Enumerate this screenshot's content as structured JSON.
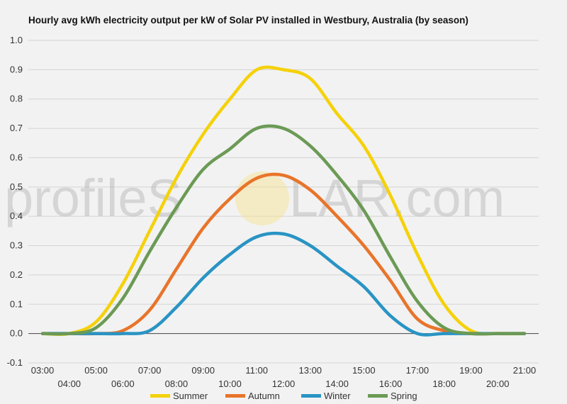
{
  "chart_data": {
    "type": "line",
    "title": "Hourly avg kWh electricity output per kW of Solar PV installed in Westbury, Australia (by season)",
    "xlabel": "",
    "ylabel": "",
    "ylim": [
      -0.1,
      1.0
    ],
    "yticks": [
      "-0.1",
      "0.0",
      "0.1",
      "0.2",
      "0.3",
      "0.4",
      "0.5",
      "0.6",
      "0.7",
      "0.8",
      "0.9",
      "1.0"
    ],
    "categories": [
      "03:00",
      "04:00",
      "05:00",
      "06:00",
      "07:00",
      "08:00",
      "09:00",
      "10:00",
      "11:00",
      "12:00",
      "13:00",
      "14:00",
      "15:00",
      "16:00",
      "17:00",
      "18:00",
      "19:00",
      "20:00",
      "21:00"
    ],
    "grid": true,
    "legend_position": "bottom",
    "series": [
      {
        "name": "Summer",
        "color": "#f5d10a",
        "values": [
          0,
          0,
          0.04,
          0.17,
          0.35,
          0.53,
          0.68,
          0.8,
          0.9,
          0.9,
          0.87,
          0.75,
          0.64,
          0.47,
          0.27,
          0.1,
          0.01,
          0,
          0
        ]
      },
      {
        "name": "Autumn",
        "color": "#e8742a",
        "values": [
          0,
          0,
          0,
          0.01,
          0.08,
          0.22,
          0.36,
          0.46,
          0.53,
          0.54,
          0.49,
          0.4,
          0.3,
          0.18,
          0.05,
          0.01,
          0,
          0,
          0
        ]
      },
      {
        "name": "Winter",
        "color": "#2994c4",
        "values": [
          0,
          0,
          0,
          0,
          0.01,
          0.09,
          0.19,
          0.27,
          0.33,
          0.34,
          0.3,
          0.23,
          0.16,
          0.06,
          0,
          0,
          0,
          0,
          0
        ]
      },
      {
        "name": "Spring",
        "color": "#6b9a55",
        "values": [
          0,
          0,
          0.02,
          0.12,
          0.28,
          0.43,
          0.56,
          0.63,
          0.7,
          0.7,
          0.64,
          0.54,
          0.42,
          0.26,
          0.11,
          0.02,
          0,
          0,
          0
        ]
      }
    ]
  },
  "watermark": {
    "left": "profileS",
    "right": "LAR.com",
    "sun_color": "#f7e08a"
  }
}
